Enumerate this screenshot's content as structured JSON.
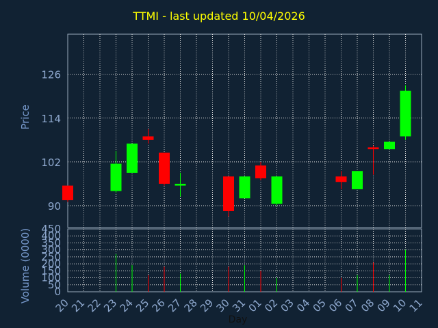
{
  "chart_data": [
    {
      "type": "candlestick",
      "title": "TTMI - last updated 10/04/2026",
      "ylabel": "Price",
      "xlabel": "",
      "ylim": [
        84,
        137
      ],
      "yticks": [
        90,
        102,
        114,
        126
      ],
      "grid": true,
      "x_ticks": [
        "20",
        "21",
        "22",
        "23",
        "24",
        "25",
        "26",
        "27",
        "28",
        "29",
        "30",
        "31",
        "01",
        "02",
        "03",
        "04",
        "05",
        "06",
        "07",
        "08",
        "09",
        "10",
        "11"
      ],
      "candles": [
        {
          "x": "20",
          "open": 95.5,
          "close": 91.5,
          "high": 95.5,
          "low": 91.0
        },
        {
          "x": "23",
          "open": 94.0,
          "close": 101.5,
          "high": 105.0,
          "low": 93.5
        },
        {
          "x": "24",
          "open": 99.0,
          "close": 107.0,
          "high": 107.0,
          "low": 99.0
        },
        {
          "x": "25",
          "open": 109.0,
          "close": 108.0,
          "high": 111.0,
          "low": 107.0
        },
        {
          "x": "26",
          "open": 104.5,
          "close": 96.0,
          "high": 104.5,
          "low": 95.5
        },
        {
          "x": "27",
          "open": 95.5,
          "close": 96.0,
          "high": 99.0,
          "low": 92.5
        },
        {
          "x": "30",
          "open": 98.0,
          "close": 88.5,
          "high": 98.0,
          "low": 87.0
        },
        {
          "x": "31",
          "open": 92.0,
          "close": 98.0,
          "high": 98.0,
          "low": 92.0
        },
        {
          "x": "01",
          "open": 101.0,
          "close": 97.5,
          "high": 102.0,
          "low": 97.0
        },
        {
          "x": "02",
          "open": 90.5,
          "close": 98.0,
          "high": 98.0,
          "low": 90.0
        },
        {
          "x": "06",
          "open": 98.0,
          "close": 96.5,
          "high": 99.5,
          "low": 94.5
        },
        {
          "x": "07",
          "open": 94.5,
          "close": 99.5,
          "high": 99.5,
          "low": 94.5
        },
        {
          "x": "08",
          "open": 106.0,
          "close": 105.5,
          "high": 106.5,
          "low": 98.5
        },
        {
          "x": "09",
          "open": 105.5,
          "close": 107.5,
          "high": 107.5,
          "low": 105.5
        },
        {
          "x": "10",
          "open": 109.0,
          "close": 121.5,
          "high": 123.0,
          "low": 108.0
        }
      ]
    },
    {
      "type": "bar",
      "title": "",
      "xlabel": "Day",
      "ylabel": "Volume (0000)",
      "ylim": [
        0,
        450
      ],
      "yticks": [
        0,
        50,
        100,
        150,
        200,
        250,
        300,
        350,
        400,
        450
      ],
      "grid": true,
      "x_ticks": [
        "20",
        "21",
        "22",
        "23",
        "24",
        "25",
        "26",
        "27",
        "28",
        "29",
        "30",
        "31",
        "01",
        "02",
        "03",
        "04",
        "05",
        "06",
        "07",
        "08",
        "09",
        "10",
        "11"
      ],
      "bars": [
        {
          "x": "20",
          "value": 0,
          "direction": "down"
        },
        {
          "x": "23",
          "value": 270,
          "direction": "up"
        },
        {
          "x": "24",
          "value": 190,
          "direction": "up"
        },
        {
          "x": "25",
          "value": 120,
          "direction": "down"
        },
        {
          "x": "26",
          "value": 180,
          "direction": "down"
        },
        {
          "x": "27",
          "value": 130,
          "direction": "up"
        },
        {
          "x": "30",
          "value": 180,
          "direction": "down"
        },
        {
          "x": "31",
          "value": 190,
          "direction": "up"
        },
        {
          "x": "01",
          "value": 150,
          "direction": "down"
        },
        {
          "x": "02",
          "value": 100,
          "direction": "up"
        },
        {
          "x": "06",
          "value": 100,
          "direction": "down"
        },
        {
          "x": "07",
          "value": 120,
          "direction": "up"
        },
        {
          "x": "08",
          "value": 210,
          "direction": "down"
        },
        {
          "x": "09",
          "value": 120,
          "direction": "up"
        },
        {
          "x": "10",
          "value": 300,
          "direction": "up"
        }
      ]
    }
  ],
  "colors": {
    "background": "#112233",
    "plot_border": "#99aabb",
    "grid": "#dddddd",
    "up": "#00ff00",
    "down": "#ff0000",
    "axis_label": "#7799cc",
    "title": "#ffff00",
    "tick_text": "#8fa9cf"
  }
}
